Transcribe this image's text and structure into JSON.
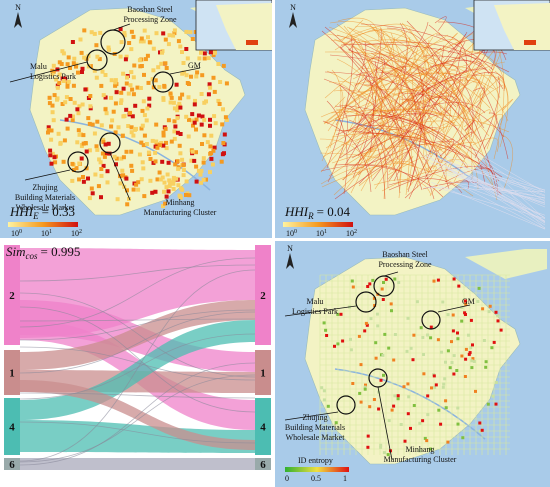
{
  "panels": [
    {
      "north": "N",
      "annotations": [
        {
          "lines": [
            "Baoshan Steel",
            "Processing Zone"
          ]
        },
        {
          "lines": [
            "Malu",
            "Logistics Park"
          ]
        },
        {
          "lines": [
            "GM"
          ]
        },
        {
          "lines": [
            "Zhujing",
            "Building Materials",
            "Wholesale Market"
          ]
        },
        {
          "lines": [
            "Minhang",
            "Manufacturing Cluster"
          ]
        }
      ],
      "index": {
        "name": "HHI",
        "sub": "E",
        "value": "= 0.33"
      },
      "legend": [
        {
          "base": "10",
          "exp": "0"
        },
        {
          "base": "10",
          "exp": "1"
        },
        {
          "base": "10",
          "exp": "2"
        }
      ]
    },
    {
      "north": "N",
      "index": {
        "name": "HHI",
        "sub": "R",
        "value": "= 0.04"
      },
      "legend": [
        {
          "base": "10",
          "exp": "0"
        },
        {
          "base": "10",
          "exp": "1"
        },
        {
          "base": "10",
          "exp": "2"
        }
      ]
    },
    {
      "index": {
        "name": "Sim",
        "sub": "cos",
        "value": "= 0.995"
      },
      "left_nodes": [
        "2",
        "1",
        "4",
        "6"
      ],
      "right_nodes": [
        "2",
        "1",
        "4",
        "6"
      ]
    },
    {
      "north": "N",
      "annotations": [
        {
          "lines": [
            "Baoshan Steel",
            "Processing Zone"
          ]
        },
        {
          "lines": [
            "Malu",
            "Logistics Park"
          ]
        },
        {
          "lines": [
            "GM"
          ]
        },
        {
          "lines": [
            "Zhujing",
            "Building Materials",
            "Wholesale Market"
          ]
        },
        {
          "lines": [
            "Minhang",
            "Manufacturing Cluster"
          ]
        }
      ],
      "legend_title": "ID entropy",
      "legend_ticks": [
        "0",
        "0.5",
        "1"
      ]
    }
  ]
}
